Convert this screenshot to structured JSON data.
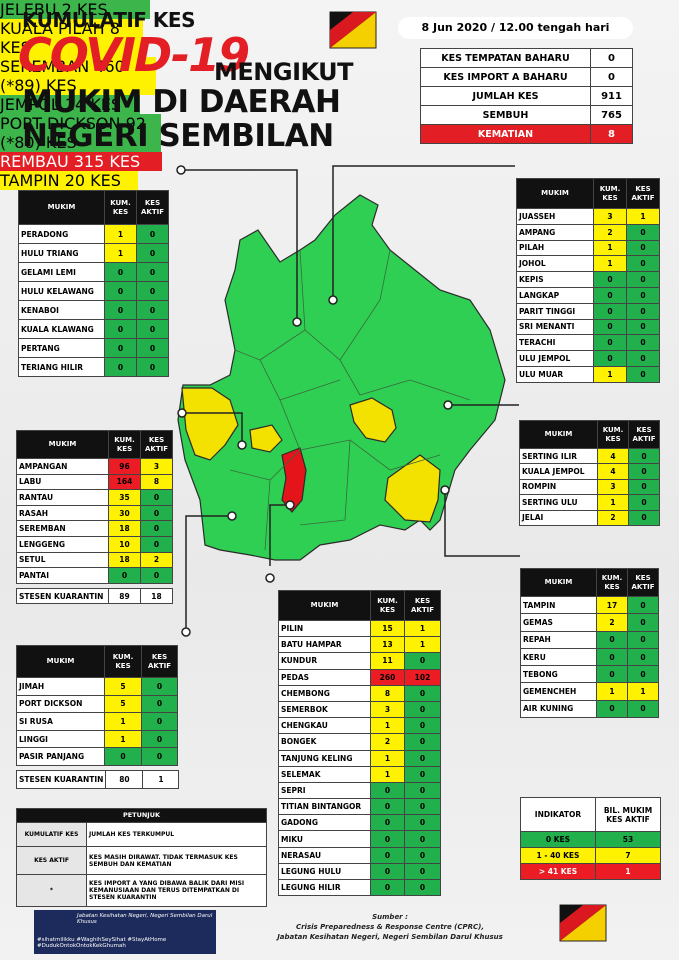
{
  "header": {
    "line1": "KUMULATIF KES",
    "covid": "COVID-19",
    "mengikut": "MENGIKUT",
    "line3": "MUKIM DI DAERAH",
    "line4": "NEGERI SEMBILAN",
    "date": "8 Jun 2020 / 12.00 tengah hari"
  },
  "summary": {
    "rows": [
      {
        "label": "KES TEMPATAN BAHARU",
        "value": 0
      },
      {
        "label": "KES IMPORT A BAHARU",
        "value": 0
      },
      {
        "label": "JUMLAH KES",
        "value": 911
      },
      {
        "label": "SEMBUH",
        "value": 765
      },
      {
        "label": "KEMATIAN",
        "value": 8,
        "color": "#e31e24"
      }
    ]
  },
  "districts": [
    {
      "title": "JELEBU 2 KES",
      "title_color": "#3cb54a",
      "title_text_color": "#000000",
      "headers": [
        "MUKIM",
        "KUM. KES",
        "KES AKTIF"
      ],
      "rows": [
        {
          "mukim": "PERADONG",
          "kum": 1,
          "aktif": 0,
          "colors": [
            "#fff200",
            "#21b04b"
          ]
        },
        {
          "mukim": "HULU TRIANG",
          "kum": 1,
          "aktif": 0,
          "colors": [
            "#fff200",
            "#21b04b"
          ]
        },
        {
          "mukim": "GELAMI LEMI",
          "kum": 0,
          "aktif": 0,
          "colors": [
            "#21b04b",
            "#21b04b"
          ]
        },
        {
          "mukim": "HULU KELAWANG",
          "kum": 0,
          "aktif": 0,
          "colors": [
            "#21b04b",
            "#21b04b"
          ]
        },
        {
          "mukim": "KENABOI",
          "kum": 0,
          "aktif": 0,
          "colors": [
            "#21b04b",
            "#21b04b"
          ]
        },
        {
          "mukim": "KUALA KLAWANG",
          "kum": 0,
          "aktif": 0,
          "colors": [
            "#21b04b",
            "#21b04b"
          ]
        },
        {
          "mukim": "PERTANG",
          "kum": 0,
          "aktif": 0,
          "colors": [
            "#21b04b",
            "#21b04b"
          ]
        },
        {
          "mukim": "TERIANG HILIR",
          "kum": 0,
          "aktif": 0,
          "colors": [
            "#21b04b",
            "#21b04b"
          ]
        }
      ]
    },
    {
      "title": "KUALA PILAH 8 KES",
      "title_color": "#fff200",
      "title_text_color": "#000000",
      "headers": [
        "MUKIM",
        "KUM. KES",
        "KES AKTIF"
      ],
      "rows": [
        {
          "mukim": "JUASSEH",
          "kum": 3,
          "aktif": 1,
          "colors": [
            "#fff200",
            "#fff200"
          ]
        },
        {
          "mukim": "AMPANG",
          "kum": 2,
          "aktif": 0,
          "colors": [
            "#fff200",
            "#21b04b"
          ]
        },
        {
          "mukim": "PILAH",
          "kum": 1,
          "aktif": 0,
          "colors": [
            "#fff200",
            "#21b04b"
          ]
        },
        {
          "mukim": "JOHOL",
          "kum": 1,
          "aktif": 0,
          "colors": [
            "#fff200",
            "#21b04b"
          ]
        },
        {
          "mukim": "KEPIS",
          "kum": 0,
          "aktif": 0,
          "colors": [
            "#21b04b",
            "#21b04b"
          ]
        },
        {
          "mukim": "LANGKAP",
          "kum": 0,
          "aktif": 0,
          "colors": [
            "#21b04b",
            "#21b04b"
          ]
        },
        {
          "mukim": "PARIT TINGGI",
          "kum": 0,
          "aktif": 0,
          "colors": [
            "#21b04b",
            "#21b04b"
          ]
        },
        {
          "mukim": "SRI MENANTI",
          "kum": 0,
          "aktif": 0,
          "colors": [
            "#21b04b",
            "#21b04b"
          ]
        },
        {
          "mukim": "TERACHI",
          "kum": 0,
          "aktif": 0,
          "colors": [
            "#21b04b",
            "#21b04b"
          ]
        },
        {
          "mukim": "ULU JEMPOL",
          "kum": 0,
          "aktif": 0,
          "colors": [
            "#21b04b",
            "#21b04b"
          ]
        },
        {
          "mukim": "ULU MUAR",
          "kum": 1,
          "aktif": 0,
          "colors": [
            "#fff200",
            "#21b04b"
          ]
        }
      ]
    },
    {
      "title": "SEREMBAN 460 (*89) KES",
      "title_color": "#fff200",
      "title_text_color": "#000000",
      "headers": [
        "MUKIM",
        "KUM. KES",
        "KES AKTIF"
      ],
      "rows": [
        {
          "mukim": "AMPANGAN",
          "kum": 96,
          "aktif": 3,
          "colors": [
            "#ec1c24",
            "#fff200"
          ]
        },
        {
          "mukim": "LABU",
          "kum": 164,
          "aktif": 8,
          "colors": [
            "#ec1c24",
            "#fff200"
          ]
        },
        {
          "mukim": "RANTAU",
          "kum": 35,
          "aktif": 0,
          "colors": [
            "#fff200",
            "#21b04b"
          ]
        },
        {
          "mukim": "RASAH",
          "kum": 30,
          "aktif": 0,
          "colors": [
            "#fff200",
            "#21b04b"
          ]
        },
        {
          "mukim": "SEREMBAN",
          "kum": 18,
          "aktif": 0,
          "colors": [
            "#fff200",
            "#21b04b"
          ]
        },
        {
          "mukim": "LENGGENG",
          "kum": 10,
          "aktif": 0,
          "colors": [
            "#fff200",
            "#21b04b"
          ]
        },
        {
          "mukim": "SETUL",
          "kum": 18,
          "aktif": 2,
          "colors": [
            "#fff200",
            "#fff200"
          ]
        },
        {
          "mukim": "PANTAI",
          "kum": 0,
          "aktif": 0,
          "colors": [
            "#21b04b",
            "#21b04b"
          ]
        }
      ],
      "stesen": {
        "mukim": "STESEN KUARANTIN",
        "kum": 89,
        "aktif": 18,
        "colors": [
          "#ffffff",
          "#ffffff"
        ]
      }
    },
    {
      "title": "JEMPOL 14 KES",
      "title_color": "#3cb54a",
      "title_text_color": "#000000",
      "headers": [
        "MUKIM",
        "KUM. KES",
        "KES AKTIF"
      ],
      "rows": [
        {
          "mukim": "SERTING ILIR",
          "kum": 4,
          "aktif": 0,
          "colors": [
            "#fff200",
            "#21b04b"
          ]
        },
        {
          "mukim": "KUALA JEMPOL",
          "kum": 4,
          "aktif": 0,
          "colors": [
            "#fff200",
            "#21b04b"
          ]
        },
        {
          "mukim": "ROMPIN",
          "kum": 3,
          "aktif": 0,
          "colors": [
            "#fff200",
            "#21b04b"
          ]
        },
        {
          "mukim": "SERTING ULU",
          "kum": 1,
          "aktif": 0,
          "colors": [
            "#fff200",
            "#21b04b"
          ]
        },
        {
          "mukim": "JELAI",
          "kum": 2,
          "aktif": 0,
          "colors": [
            "#fff200",
            "#21b04b"
          ]
        }
      ]
    },
    {
      "title": "PORT DICKSON  92 (*80) KES",
      "title_color": "#3cb54a",
      "title_text_color": "#000000",
      "headers": [
        "MUKIM",
        "KUM. KES",
        "KES AKTIF"
      ],
      "rows": [
        {
          "mukim": "JIMAH",
          "kum": 5,
          "aktif": 0,
          "colors": [
            "#fff200",
            "#21b04b"
          ]
        },
        {
          "mukim": "PORT DICKSON",
          "kum": 5,
          "aktif": 0,
          "colors": [
            "#fff200",
            "#21b04b"
          ]
        },
        {
          "mukim": "SI RUSA",
          "kum": 1,
          "aktif": 0,
          "colors": [
            "#fff200",
            "#21b04b"
          ]
        },
        {
          "mukim": "LINGGI",
          "kum": 1,
          "aktif": 0,
          "colors": [
            "#fff200",
            "#21b04b"
          ]
        },
        {
          "mukim": "PASIR PANJANG",
          "kum": 0,
          "aktif": 0,
          "colors": [
            "#21b04b",
            "#21b04b"
          ]
        }
      ],
      "stesen": {
        "mukim": "STESEN KUARANTIN",
        "kum": 80,
        "aktif": 1,
        "colors": [
          "#ffffff",
          "#ffffff"
        ]
      }
    },
    {
      "title": "REMBAU 315 KES",
      "title_color": "#e31e24",
      "title_text_color": "#ffffff",
      "headers": [
        "MUKIM",
        "KUM. KES",
        "KES AKTIF"
      ],
      "rows": [
        {
          "mukim": "PILIN",
          "kum": 15,
          "aktif": 1,
          "colors": [
            "#fff200",
            "#fff200"
          ]
        },
        {
          "mukim": "BATU HAMPAR",
          "kum": 13,
          "aktif": 1,
          "colors": [
            "#fff200",
            "#fff200"
          ]
        },
        {
          "mukim": "KUNDUR",
          "kum": 11,
          "aktif": 0,
          "colors": [
            "#fff200",
            "#21b04b"
          ]
        },
        {
          "mukim": "PEDAS",
          "kum": 260,
          "aktif": 102,
          "colors": [
            "#ec1c24",
            "#ec1c24"
          ]
        },
        {
          "mukim": "CHEMBONG",
          "kum": 8,
          "aktif": 0,
          "colors": [
            "#fff200",
            "#21b04b"
          ]
        },
        {
          "mukim": "SEMERBOK",
          "kum": 3,
          "aktif": 0,
          "colors": [
            "#fff200",
            "#21b04b"
          ]
        },
        {
          "mukim": "CHENGKAU",
          "kum": 1,
          "aktif": 0,
          "colors": [
            "#fff200",
            "#21b04b"
          ]
        },
        {
          "mukim": "BONGEK",
          "kum": 2,
          "aktif": 0,
          "colors": [
            "#fff200",
            "#21b04b"
          ]
        },
        {
          "mukim": "TANJUNG KELING",
          "kum": 1,
          "aktif": 0,
          "colors": [
            "#fff200",
            "#21b04b"
          ]
        },
        {
          "mukim": "SELEMAK",
          "kum": 1,
          "aktif": 0,
          "colors": [
            "#fff200",
            "#21b04b"
          ]
        },
        {
          "mukim": "SEPRI",
          "kum": 0,
          "aktif": 0,
          "colors": [
            "#21b04b",
            "#21b04b"
          ]
        },
        {
          "mukim": "TITIAN BINTANGOR",
          "kum": 0,
          "aktif": 0,
          "colors": [
            "#21b04b",
            "#21b04b"
          ]
        },
        {
          "mukim": "GADONG",
          "kum": 0,
          "aktif": 0,
          "colors": [
            "#21b04b",
            "#21b04b"
          ]
        },
        {
          "mukim": "MIKU",
          "kum": 0,
          "aktif": 0,
          "colors": [
            "#21b04b",
            "#21b04b"
          ]
        },
        {
          "mukim": "NERASAU",
          "kum": 0,
          "aktif": 0,
          "colors": [
            "#21b04b",
            "#21b04b"
          ]
        },
        {
          "mukim": "LEGUNG HULU",
          "kum": 0,
          "aktif": 0,
          "colors": [
            "#21b04b",
            "#21b04b"
          ]
        },
        {
          "mukim": "LEGUNG HILIR",
          "kum": 0,
          "aktif": 0,
          "colors": [
            "#21b04b",
            "#21b04b"
          ]
        }
      ]
    },
    {
      "title": "TAMPIN 20 KES",
      "title_color": "#fff200",
      "title_text_color": "#000000",
      "headers": [
        "MUKIM",
        "KUM. KES",
        "KES AKTIF"
      ],
      "rows": [
        {
          "mukim": "TAMPIN",
          "kum": 17,
          "aktif": 0,
          "colors": [
            "#fff200",
            "#21b04b"
          ]
        },
        {
          "mukim": "GEMAS",
          "kum": 2,
          "aktif": 0,
          "colors": [
            "#fff200",
            "#21b04b"
          ]
        },
        {
          "mukim": "REPAH",
          "kum": 0,
          "aktif": 0,
          "colors": [
            "#21b04b",
            "#21b04b"
          ]
        },
        {
          "mukim": "KERU",
          "kum": 0,
          "aktif": 0,
          "colors": [
            "#21b04b",
            "#21b04b"
          ]
        },
        {
          "mukim": "TEBONG",
          "kum": 0,
          "aktif": 0,
          "colors": [
            "#21b04b",
            "#21b04b"
          ]
        },
        {
          "mukim": "GEMENCHEH",
          "kum": 1,
          "aktif": 1,
          "colors": [
            "#fff200",
            "#fff200"
          ]
        },
        {
          "mukim": "AIR KUNING",
          "kum": 0,
          "aktif": 0,
          "colors": [
            "#21b04b",
            "#21b04b"
          ]
        }
      ]
    }
  ],
  "petunjuk": {
    "title": "PETUNJUK",
    "rows": [
      {
        "term": "KUMULATIF KES",
        "desc": "JUMLAH KES TERKUMPUL"
      },
      {
        "term": "KES AKTIF",
        "desc": "KES MASIH DIRAWAT. TIDAK TERMASUK KES SEMBUH DAN KEMATIAN"
      },
      {
        "term": "*",
        "desc": "KES IMPORT A YANG DIBAWA BALIK DARI MISI KEMANUSIAAN DAN TERUS DITEMPATKAN DI STESEN KUARANTIN"
      }
    ]
  },
  "indikator": {
    "headers": [
      "INDIKATOR",
      "BIL. MUKIM KES AKTIF"
    ],
    "rows": [
      {
        "label": "0 KES",
        "count": 53,
        "color": "#21b04b"
      },
      {
        "label": "1 - 40 KES",
        "count": 7,
        "color": "#fff200"
      },
      {
        "label": "> 41 KES",
        "count": 1,
        "color": "#ec1c24"
      }
    ]
  },
  "footer": {
    "logo_text": "Jabatan Kesihatan Negeri, Negeri Sembilan Darul Khusus",
    "hashtags1": "#sihatmilikku #WaghihSeySihat #StayAtHome",
    "hashtags2": "#DudukOntokOntokKekGhumah",
    "source_label": "Sumber :",
    "source1": "Crisis Preparedness & Response Centre (CPRC),",
    "source2": "Jabatan Kesihatan Negeri, Negeri Sembilan Darul Khusus"
  }
}
